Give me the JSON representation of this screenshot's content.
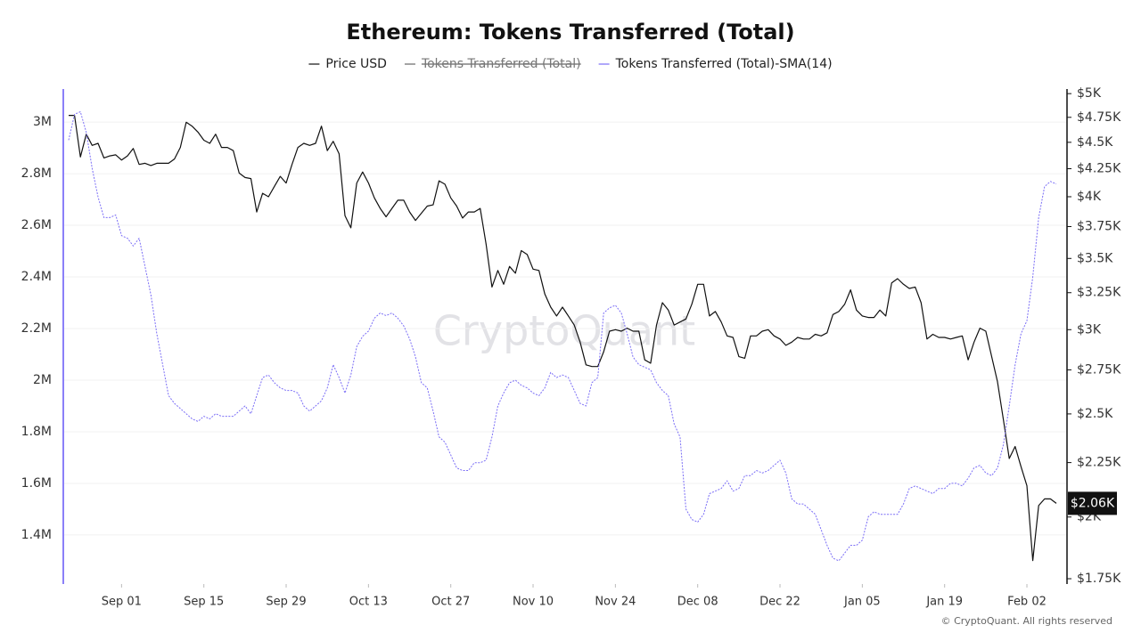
{
  "chart_data": {
    "type": "line",
    "title": "Ethereum: Tokens Transferred (Total)",
    "watermark": "CryptoQuant",
    "footer": "© CryptoQuant. All rights reserved",
    "categories": [
      null,
      null,
      null,
      null,
      null,
      null,
      null,
      null,
      null,
      "Sep 01",
      null,
      null,
      null,
      null,
      null,
      null,
      null,
      null,
      null,
      null,
      null,
      null,
      null,
      "Sep 15",
      null,
      null,
      null,
      null,
      null,
      null,
      null,
      null,
      null,
      null,
      null,
      null,
      null,
      "Sep 29",
      null,
      null,
      null,
      null,
      null,
      null,
      null,
      null,
      null,
      null,
      null,
      null,
      null,
      "Oct 13",
      null,
      null,
      null,
      null,
      null,
      null,
      null,
      null,
      null,
      null,
      null,
      null,
      null,
      "Oct 27",
      null,
      null,
      null,
      null,
      null,
      null,
      null,
      null,
      null,
      null,
      null,
      null,
      null,
      "Nov 10",
      null,
      null,
      null,
      null,
      null,
      null,
      null,
      null,
      null,
      null,
      null,
      null,
      null,
      "Nov 24",
      null,
      null,
      null,
      null,
      null,
      null,
      null,
      null,
      null,
      null,
      null,
      null,
      null,
      "Dec 08",
      null,
      null,
      null,
      null,
      null,
      null,
      null,
      null,
      null,
      null,
      null,
      null,
      null,
      "Dec 22",
      null,
      null,
      null,
      null,
      null,
      null,
      null,
      null,
      null,
      null,
      null,
      null,
      null,
      "Jan 05",
      null,
      null,
      null,
      null,
      null,
      null,
      null,
      null,
      null,
      null,
      null,
      null,
      null,
      "Jan 19",
      null,
      null,
      null,
      null,
      null,
      null,
      null,
      null,
      null,
      null,
      null,
      null,
      null,
      "Feb 02",
      null,
      null,
      null,
      null,
      null
    ],
    "series": [
      {
        "name": "Price USD",
        "color": "#111111",
        "axis": "y2",
        "line_style": "solid",
        "values": [
          4770,
          4770,
          4360,
          4580,
          4470,
          4490,
          4350,
          4370,
          4380,
          4330,
          4370,
          4440,
          4290,
          4300,
          4280,
          4300,
          4300,
          4300,
          4340,
          4450,
          4700,
          4660,
          4600,
          4520,
          4490,
          4580,
          4450,
          4450,
          4420,
          4210,
          4170,
          4160,
          3870,
          4030,
          4000,
          4090,
          4180,
          4120,
          4290,
          4450,
          4490,
          4470,
          4490,
          4660,
          4420,
          4510,
          4390,
          3840,
          3740,
          4120,
          4220,
          4120,
          3990,
          3900,
          3830,
          3900,
          3970,
          3970,
          3870,
          3800,
          3860,
          3920,
          3930,
          4140,
          4110,
          3990,
          3920,
          3820,
          3870,
          3870,
          3900,
          3610,
          3290,
          3410,
          3310,
          3440,
          3390,
          3560,
          3530,
          3420,
          3410,
          3240,
          3150,
          3090,
          3150,
          3090,
          3030,
          2920,
          2780,
          2770,
          2770,
          2860,
          2990,
          3000,
          2990,
          3010,
          2990,
          2990,
          2810,
          2790,
          3030,
          3180,
          3130,
          3030,
          3050,
          3070,
          3170,
          3310,
          3310,
          3090,
          3120,
          3050,
          2960,
          2950,
          2830,
          2820,
          2960,
          2960,
          2990,
          3000,
          2960,
          2940,
          2900,
          2920,
          2950,
          2940,
          2940,
          2970,
          2960,
          2980,
          3100,
          3120,
          3170,
          3270,
          3130,
          3090,
          3080,
          3080,
          3130,
          3090,
          3320,
          3350,
          3310,
          3280,
          3290,
          3180,
          2940,
          2970,
          2950,
          2950,
          2940,
          2950,
          2960,
          2810,
          2920,
          3010,
          2990,
          2830,
          2680,
          2470,
          2270,
          2330,
          2230,
          2140,
          1820,
          2050,
          2080,
          2080,
          2060
        ]
      },
      {
        "name": "Tokens Transferred (Total)",
        "color": "#555555",
        "visible": false
      },
      {
        "name": "Tokens Transferred (Total)-SMA(14)",
        "color": "#7b6ef6",
        "axis": "y",
        "line_style": "dotted",
        "values": [
          2930000,
          3030000,
          3040000,
          2960000,
          2820000,
          2710000,
          2630000,
          2630000,
          2640000,
          2560000,
          2550000,
          2520000,
          2550000,
          2440000,
          2330000,
          2180000,
          2060000,
          1940000,
          1910000,
          1890000,
          1870000,
          1850000,
          1840000,
          1860000,
          1850000,
          1870000,
          1860000,
          1860000,
          1860000,
          1880000,
          1900000,
          1870000,
          1940000,
          2010000,
          2020000,
          1990000,
          1970000,
          1960000,
          1960000,
          1950000,
          1900000,
          1880000,
          1900000,
          1920000,
          1970000,
          2060000,
          2010000,
          1950000,
          2020000,
          2130000,
          2170000,
          2190000,
          2240000,
          2260000,
          2250000,
          2260000,
          2240000,
          2210000,
          2160000,
          2090000,
          1990000,
          1970000,
          1880000,
          1780000,
          1760000,
          1710000,
          1660000,
          1650000,
          1650000,
          1680000,
          1680000,
          1690000,
          1780000,
          1900000,
          1950000,
          1990000,
          2000000,
          1980000,
          1970000,
          1950000,
          1940000,
          1970000,
          2030000,
          2010000,
          2020000,
          2010000,
          1960000,
          1910000,
          1900000,
          1990000,
          2010000,
          2260000,
          2280000,
          2290000,
          2260000,
          2180000,
          2090000,
          2060000,
          2050000,
          2040000,
          1990000,
          1960000,
          1940000,
          1830000,
          1780000,
          1500000,
          1460000,
          1450000,
          1480000,
          1560000,
          1570000,
          1580000,
          1610000,
          1570000,
          1580000,
          1630000,
          1630000,
          1650000,
          1640000,
          1650000,
          1670000,
          1690000,
          1640000,
          1540000,
          1520000,
          1520000,
          1500000,
          1480000,
          1420000,
          1360000,
          1310000,
          1300000,
          1330000,
          1360000,
          1360000,
          1380000,
          1470000,
          1490000,
          1480000,
          1480000,
          1480000,
          1480000,
          1520000,
          1580000,
          1590000,
          1580000,
          1570000,
          1560000,
          1580000,
          1580000,
          1600000,
          1600000,
          1590000,
          1620000,
          1660000,
          1670000,
          1640000,
          1630000,
          1660000,
          1750000,
          1900000,
          2060000,
          2180000,
          2230000,
          2400000,
          2630000,
          2750000,
          2770000,
          2760000
        ]
      }
    ],
    "ylim": [
      1210000,
      3128000
    ],
    "yticks": [
      {
        "value": 1400000,
        "label": "1.4M"
      },
      {
        "value": 1600000,
        "label": "1.6M"
      },
      {
        "value": 1800000,
        "label": "1.8M"
      },
      {
        "value": 2000000,
        "label": "2M"
      },
      {
        "value": 2200000,
        "label": "2.2M"
      },
      {
        "value": 2400000,
        "label": "2.4M"
      },
      {
        "value": 2600000,
        "label": "2.6M"
      },
      {
        "value": 2800000,
        "label": "2.8M"
      },
      {
        "value": 3000000,
        "label": "3M"
      }
    ],
    "y2lim": [
      1730,
      5050
    ],
    "y2log": true,
    "y2ticks": [
      {
        "value": 1750,
        "label": "$1.75K"
      },
      {
        "value": 2000,
        "label": "$2K"
      },
      {
        "value": 2250,
        "label": "$2.25K"
      },
      {
        "value": 2500,
        "label": "$2.5K"
      },
      {
        "value": 2750,
        "label": "$2.75K"
      },
      {
        "value": 3000,
        "label": "$3K"
      },
      {
        "value": 3250,
        "label": "$3.25K"
      },
      {
        "value": 3500,
        "label": "$3.5K"
      },
      {
        "value": 3750,
        "label": "$3.75K"
      },
      {
        "value": 4000,
        "label": "$4K"
      },
      {
        "value": 4250,
        "label": "$4.25K"
      },
      {
        "value": 4500,
        "label": "$4.5K"
      },
      {
        "value": 4750,
        "label": "$4.75K"
      },
      {
        "value": 5000,
        "label": "$5K"
      }
    ],
    "last_value": {
      "value": 2060,
      "label": "$2.06K",
      "axis": "y2"
    },
    "grid": true,
    "legend": "top"
  }
}
